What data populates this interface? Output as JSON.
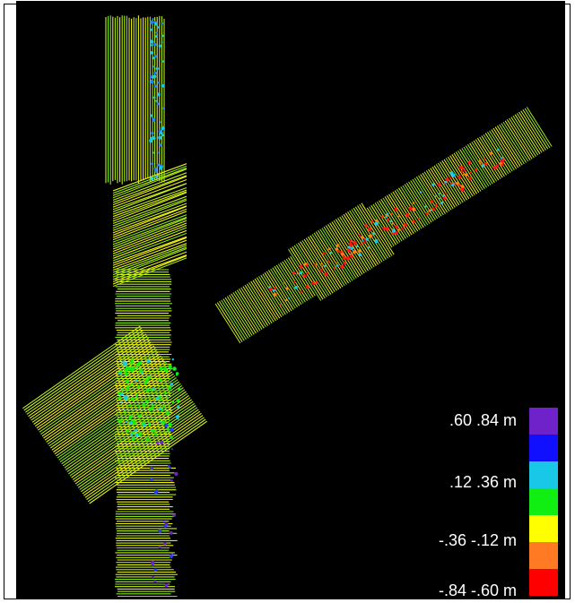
{
  "map": {
    "background": "#000000",
    "description_colors": [
      "#1f3fff",
      "#14d3f0",
      "#13ff2a",
      "#c9f51c",
      "#f4f80b",
      "#ff7a1a",
      "#ff1414"
    ]
  },
  "legend": {
    "items": [
      {
        "range": ".60  .84 m",
        "color": "#6f22c9"
      },
      {
        "range": "",
        "color": "#1010ff"
      },
      {
        "range": ".12  .36 m",
        "color": "#18c8e6"
      },
      {
        "range": "",
        "color": "#11ee11"
      },
      {
        "range": "-.36  -.12 m",
        "color": "#ffff00"
      },
      {
        "range": "",
        "color": "#ff7a22"
      },
      {
        "range": "-.84  -.60 m",
        "color": "#ff0000"
      }
    ]
  }
}
